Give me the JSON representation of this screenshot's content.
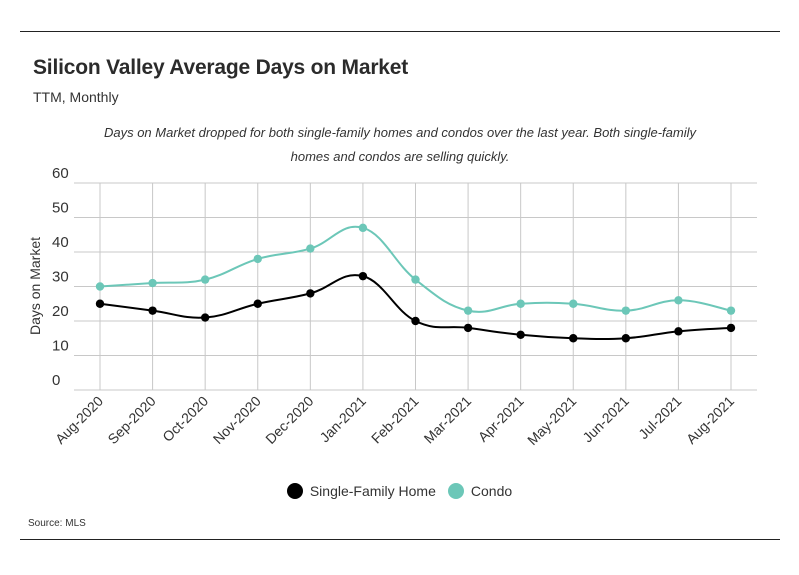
{
  "header": {
    "title": "Silicon Valley Average Days on Market",
    "subtitle": "TTM, Monthly",
    "note": "Days on Market dropped for both single-family homes and condos over the last year. Both single-family homes and condos are selling quickly."
  },
  "footer": {
    "source": "Source:  MLS"
  },
  "chart_data": {
    "type": "line",
    "title": "Silicon Valley Average Days on Market",
    "subtitle": "TTM, Monthly",
    "xlabel": "",
    "ylabel": "Days on Market",
    "ylim": [
      0,
      60
    ],
    "yticks": [
      0,
      10,
      20,
      30,
      40,
      50,
      60
    ],
    "grid": true,
    "legend_position": "bottom",
    "categories": [
      "Aug-2020",
      "Sep-2020",
      "Oct-2020",
      "Nov-2020",
      "Dec-2020",
      "Jan-2021",
      "Feb-2021",
      "Mar-2021",
      "Apr-2021",
      "May-2021",
      "Jun-2021",
      "Jul-2021",
      "Aug-2021"
    ],
    "series": [
      {
        "name": "Single-Family Home",
        "color": "#000000",
        "values": [
          25,
          23,
          21,
          25,
          28,
          33,
          20,
          18,
          16,
          15,
          15,
          17,
          18
        ]
      },
      {
        "name": "Condo",
        "color": "#6cc7b8",
        "values": [
          30,
          31,
          32,
          38,
          41,
          47,
          32,
          23,
          25,
          25,
          23,
          26,
          23
        ]
      }
    ]
  }
}
